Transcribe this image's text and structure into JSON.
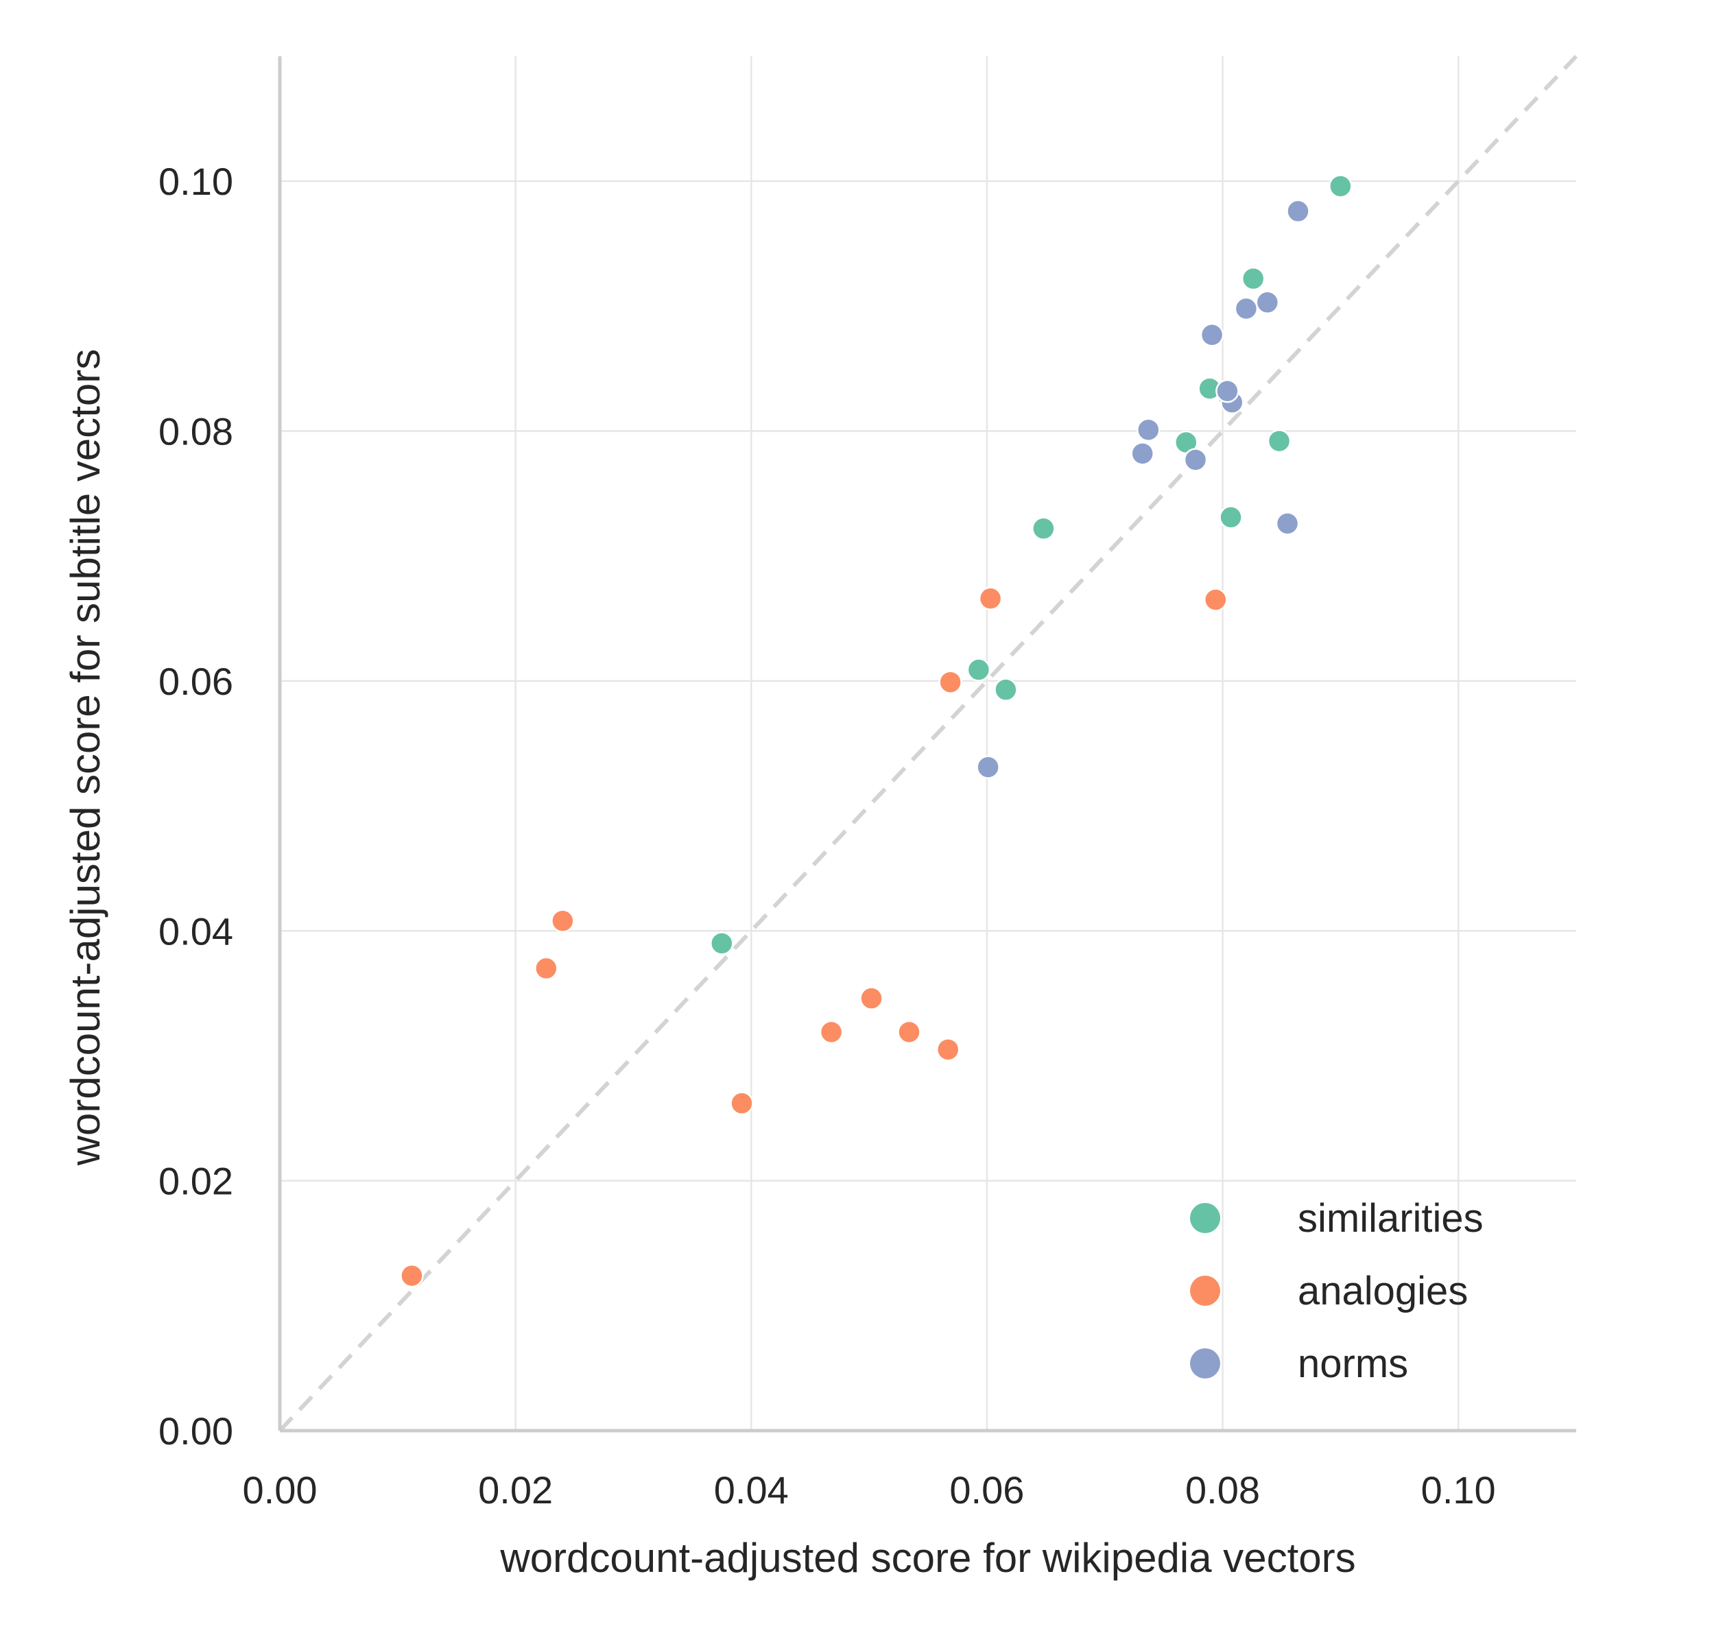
{
  "chart_data": {
    "type": "scatter",
    "xlabel": "wordcount-adjusted score for wikipedia vectors",
    "ylabel": "wordcount-adjusted score for subtitle vectors",
    "xlim": [
      0,
      0.11
    ],
    "ylim": [
      0,
      0.11
    ],
    "xticks": [
      "0.00",
      "0.02",
      "0.04",
      "0.06",
      "0.08",
      "0.10"
    ],
    "yticks": [
      "0.00",
      "0.02",
      "0.04",
      "0.06",
      "0.08",
      "0.10"
    ],
    "tick_values": [
      0,
      0.02,
      0.04,
      0.06,
      0.08,
      0.1
    ],
    "grid": true,
    "reference_line": "y = x, dashed",
    "legend_position": "lower-right",
    "series": [
      {
        "name": "similarities",
        "color": "#66c2a5",
        "points": [
          [
            0.09,
            0.0996
          ],
          [
            0.0826,
            0.0922
          ],
          [
            0.0789,
            0.0834
          ],
          [
            0.0769,
            0.0791
          ],
          [
            0.0848,
            0.0792
          ],
          [
            0.0807,
            0.0731
          ],
          [
            0.0648,
            0.0722
          ],
          [
            0.0593,
            0.0609
          ],
          [
            0.0616,
            0.0593
          ],
          [
            0.0375,
            0.039
          ],
          [
            0.0805,
            0.0828
          ]
        ]
      },
      {
        "name": "analogies",
        "color": "#fc8d62",
        "points": [
          [
            0.0603,
            0.0666
          ],
          [
            0.0794,
            0.0665
          ],
          [
            0.0569,
            0.0599
          ],
          [
            0.024,
            0.0408
          ],
          [
            0.0226,
            0.037
          ],
          [
            0.0502,
            0.0346
          ],
          [
            0.0468,
            0.0319
          ],
          [
            0.0534,
            0.0319
          ],
          [
            0.0567,
            0.0305
          ],
          [
            0.0392,
            0.0262
          ],
          [
            0.0112,
            0.0124
          ]
        ]
      },
      {
        "name": "norms",
        "color": "#8da0cb",
        "points": [
          [
            0.0864,
            0.0976
          ],
          [
            0.0838,
            0.0903
          ],
          [
            0.082,
            0.0898
          ],
          [
            0.0791,
            0.0877
          ],
          [
            0.0808,
            0.0823
          ],
          [
            0.0804,
            0.0832
          ],
          [
            0.0737,
            0.0801
          ],
          [
            0.0732,
            0.0782
          ],
          [
            0.0777,
            0.0777
          ],
          [
            0.0855,
            0.0726
          ],
          [
            0.0601,
            0.0531
          ]
        ]
      }
    ]
  }
}
